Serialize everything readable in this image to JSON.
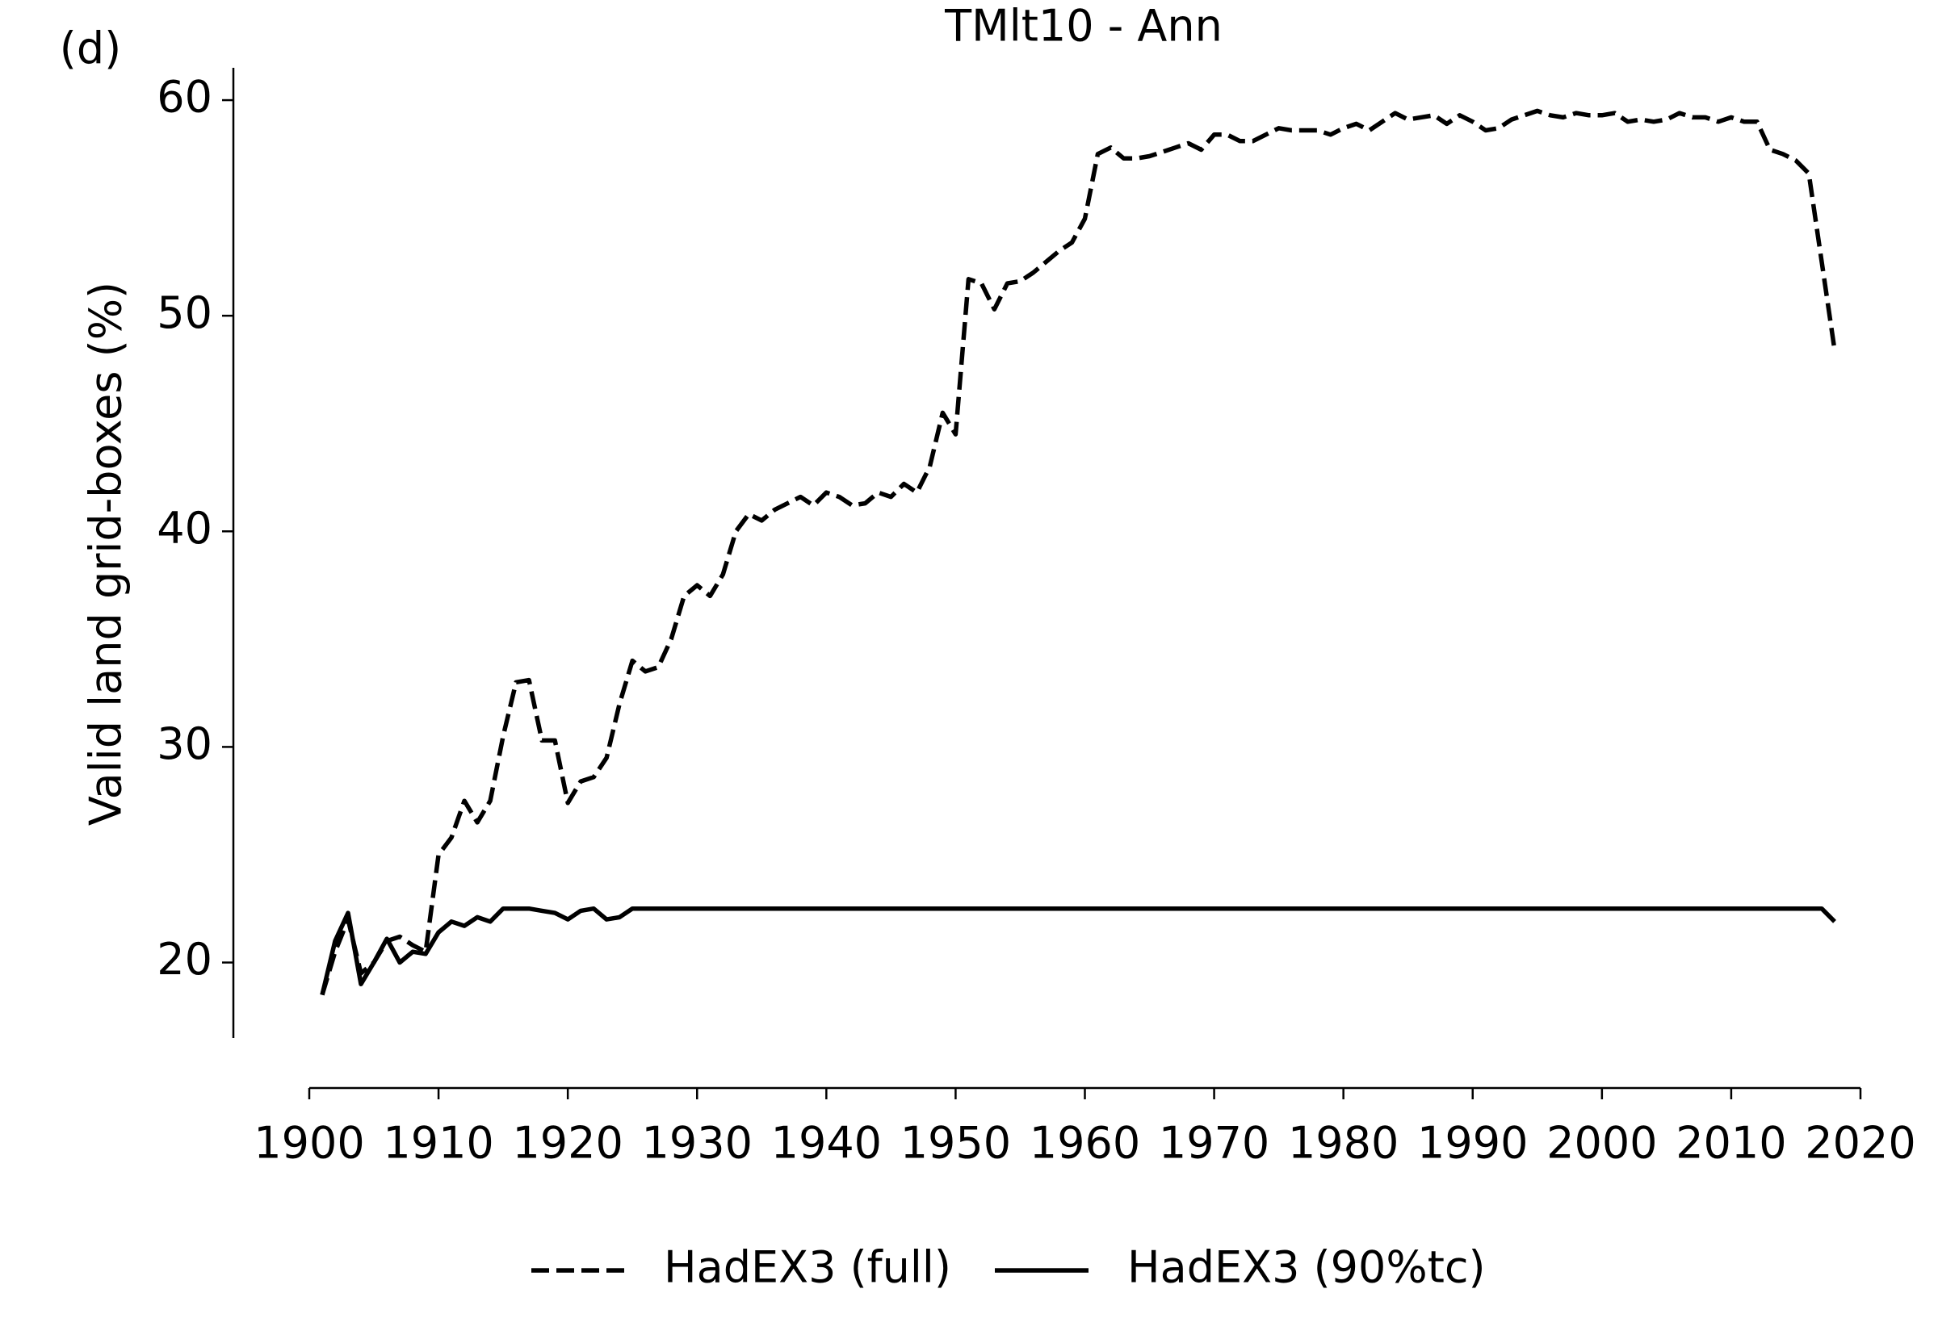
{
  "chart_data": {
    "type": "line",
    "title": "TMlt10 - Ann",
    "panel_label": "(d)",
    "y_label": "Valid land grid-boxes (%)",
    "x": [
      1901,
      1902,
      1903,
      1904,
      1905,
      1906,
      1907,
      1908,
      1909,
      1910,
      1911,
      1912,
      1913,
      1914,
      1915,
      1916,
      1917,
      1918,
      1919,
      1920,
      1921,
      1922,
      1923,
      1924,
      1925,
      1926,
      1927,
      1928,
      1929,
      1930,
      1931,
      1932,
      1933,
      1934,
      1935,
      1936,
      1937,
      1938,
      1939,
      1940,
      1941,
      1942,
      1943,
      1944,
      1945,
      1946,
      1947,
      1948,
      1949,
      1950,
      1951,
      1952,
      1953,
      1954,
      1955,
      1956,
      1957,
      1958,
      1959,
      1960,
      1961,
      1962,
      1963,
      1964,
      1965,
      1966,
      1967,
      1968,
      1969,
      1970,
      1971,
      1972,
      1973,
      1974,
      1975,
      1976,
      1977,
      1978,
      1979,
      1980,
      1981,
      1982,
      1983,
      1984,
      1985,
      1986,
      1987,
      1988,
      1989,
      1990,
      1991,
      1992,
      1993,
      1994,
      1995,
      1996,
      1997,
      1998,
      1999,
      2000,
      2001,
      2002,
      2003,
      2004,
      2005,
      2006,
      2007,
      2008,
      2009,
      2010,
      2011,
      2012,
      2013,
      2014,
      2015,
      2016,
      2017,
      2018
    ],
    "series": [
      {
        "name": "HadEX3 (full)",
        "color": "#000000",
        "linestyle": "dashed",
        "values": [
          18.5,
          20.5,
          22,
          19.5,
          20,
          21,
          21.2,
          20.8,
          20.5,
          25,
          25.8,
          27.5,
          26.5,
          27.5,
          30.5,
          33,
          33.1,
          30.3,
          30.3,
          27.4,
          28.4,
          28.6,
          29.5,
          32,
          34,
          33.5,
          33.7,
          35,
          37,
          37.5,
          37,
          38,
          40,
          40.8,
          40.5,
          41,
          41.3,
          41.6,
          41.2,
          41.8,
          41.6,
          41.2,
          41.3,
          41.8,
          41.6,
          42.2,
          41.8,
          43,
          45.5,
          44.5,
          51.7,
          51.5,
          50.3,
          51.5,
          51.6,
          52,
          52.5,
          53,
          53.4,
          54.5,
          57.5,
          57.8,
          57.3,
          57.3,
          57.4,
          57.6,
          57.8,
          58,
          57.7,
          58.4,
          58.4,
          58.1,
          58.1,
          58.4,
          58.7,
          58.6,
          58.6,
          58.6,
          58.4,
          58.7,
          58.9,
          58.6,
          59,
          59.4,
          59.1,
          59.2,
          59.3,
          58.9,
          59.3,
          59,
          58.6,
          58.7,
          59.1,
          59.3,
          59.5,
          59.3,
          59.2,
          59.4,
          59.3,
          59.3,
          59.4,
          59,
          59.1,
          59,
          59.1,
          59.4,
          59.2,
          59.2,
          59,
          59.2,
          59,
          59,
          57.7,
          57.5,
          57.2,
          56.6,
          52.5,
          48.4
        ]
      },
      {
        "name": "HadEX3 (90%tc)",
        "color": "#000000",
        "linestyle": "solid",
        "values": [
          18.5,
          21,
          22.3,
          19,
          20,
          21.1,
          20,
          20.5,
          20.4,
          21.4,
          21.9,
          21.7,
          22.1,
          21.9,
          22.5,
          22.5,
          22.5,
          22.4,
          22.3,
          22,
          22.4,
          22.5,
          22,
          22.1,
          22.5,
          22.5,
          22.5,
          22.5,
          22.5,
          22.5,
          22.5,
          22.5,
          22.5,
          22.5,
          22.5,
          22.5,
          22.5,
          22.5,
          22.5,
          22.5,
          22.5,
          22.5,
          22.5,
          22.5,
          22.5,
          22.5,
          22.5,
          22.5,
          22.5,
          22.5,
          22.5,
          22.5,
          22.5,
          22.5,
          22.5,
          22.5,
          22.5,
          22.5,
          22.5,
          22.5,
          22.5,
          22.5,
          22.5,
          22.5,
          22.5,
          22.5,
          22.5,
          22.5,
          22.5,
          22.5,
          22.5,
          22.5,
          22.5,
          22.5,
          22.5,
          22.5,
          22.5,
          22.5,
          22.5,
          22.5,
          22.5,
          22.5,
          22.5,
          22.5,
          22.5,
          22.5,
          22.5,
          22.5,
          22.5,
          22.5,
          22.5,
          22.5,
          22.5,
          22.5,
          22.5,
          22.5,
          22.5,
          22.5,
          22.5,
          22.5,
          22.5,
          22.5,
          22.5,
          22.5,
          22.5,
          22.5,
          22.5,
          22.5,
          22.5,
          22.5,
          22.5,
          22.5,
          22.5,
          22.5,
          22.5,
          22.5,
          22.5,
          21.9
        ]
      }
    ],
    "xlim": [
      1900,
      2020
    ],
    "xticks": [
      1900,
      1910,
      1920,
      1930,
      1940,
      1950,
      1960,
      1970,
      1980,
      1990,
      2000,
      2010,
      2020
    ],
    "ylim": [
      16.5,
      61.5
    ],
    "yticks": [
      20,
      30,
      40,
      50,
      60
    ],
    "grid": false,
    "legend": "bottom"
  }
}
